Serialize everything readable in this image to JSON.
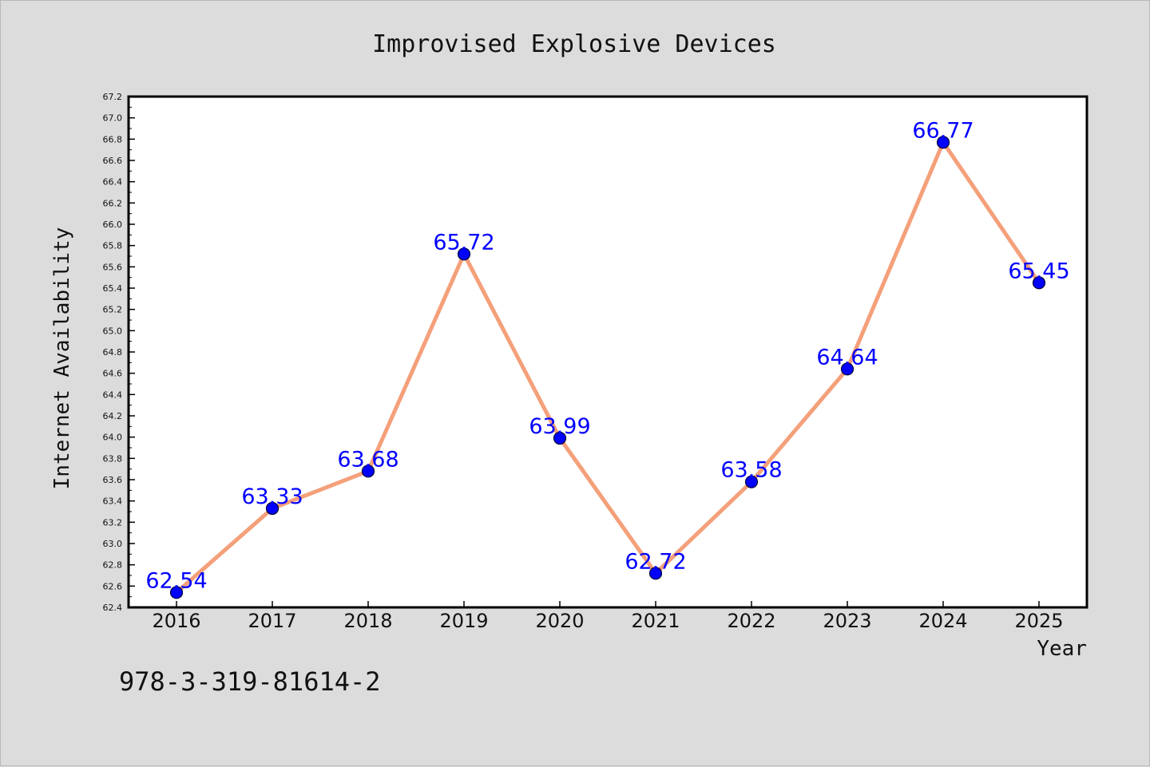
{
  "chart_data": {
    "type": "line",
    "title": "Improvised Explosive Devices",
    "xlabel": "Year",
    "ylabel": "Internet Availability",
    "categories": [
      "2016",
      "2017",
      "2018",
      "2019",
      "2020",
      "2021",
      "2022",
      "2023",
      "2024",
      "2025"
    ],
    "series": [
      {
        "values": [
          62.54,
          63.33,
          63.68,
          65.72,
          63.99,
          62.72,
          63.58,
          64.64,
          66.77,
          65.45
        ],
        "labels": [
          "62.54",
          "63.33",
          "63.68",
          "65.72",
          "63.99",
          "62.72",
          "63.58",
          "64.64",
          "66.77",
          "65.45"
        ],
        "line_color": "#f4a07a",
        "marker_color": "#0000ff"
      }
    ],
    "ylim": [
      62.4,
      67.2
    ],
    "yticks": [
      "62.4",
      "62.6",
      "62.8",
      "63.0",
      "63.2",
      "63.4",
      "63.6",
      "63.8",
      "64.0",
      "64.2",
      "64.4",
      "64.6",
      "64.8",
      "65.0",
      "65.2",
      "65.4",
      "65.6",
      "65.8",
      "66.0",
      "66.2",
      "66.4",
      "66.6",
      "66.8",
      "67.0",
      "67.2"
    ],
    "grid": false,
    "legend": "none",
    "background_color": "#dcdcdc",
    "plot_background_color": "#ffffff"
  },
  "footer": {
    "code": "978-3-319-81614-2"
  }
}
